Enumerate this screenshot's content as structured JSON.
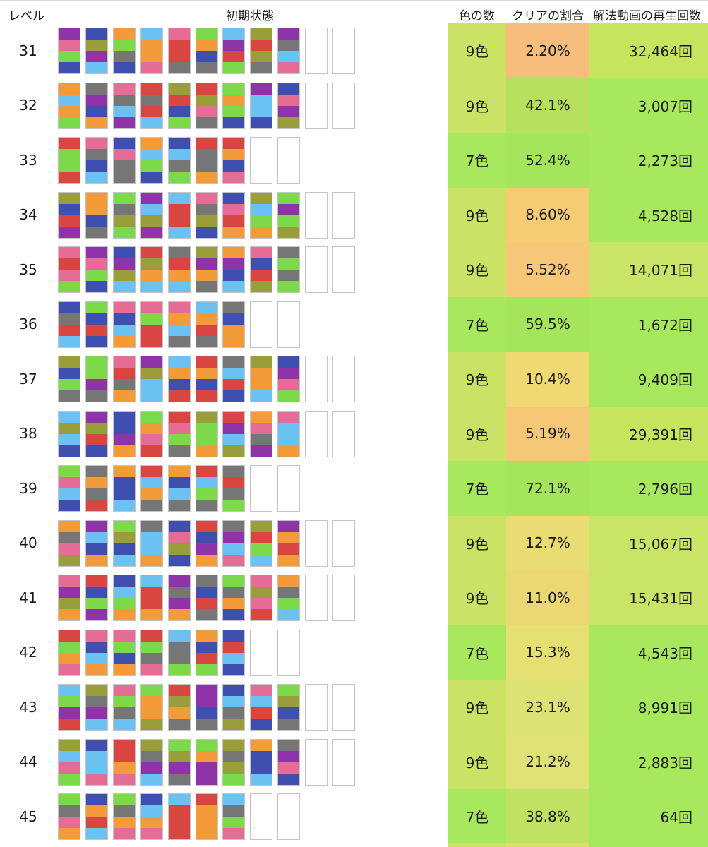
{
  "headers": {
    "level": "レベル",
    "initial_state": "初期状態",
    "colors": "色の数",
    "clear_rate": "クリアの割合",
    "views": "解法動画の再生回数"
  },
  "palette": {
    "P": "#e46c95",
    "B": "#3f4fb0",
    "O": "#f39a39",
    "S": "#6cc1f3",
    "R": "#d94540",
    "G": "#7cd94a",
    "V": "#8f33a8",
    "K": "#767676",
    "Y": "#9a9e3a"
  },
  "rows": [
    {
      "level": "31",
      "colors": "9色",
      "rate": "2.20%",
      "views": "32,464回",
      "bg": [
        "#cce264",
        "#f6bd7c",
        "#c6e45d"
      ],
      "tubes": [
        [
          "V",
          "P",
          "G",
          "B"
        ],
        [
          "B",
          "Y",
          "V",
          "S"
        ],
        [
          "O",
          "G",
          "K",
          "B"
        ],
        [
          "S",
          "O",
          "O",
          "P"
        ],
        [
          "P",
          "R",
          "R",
          "K"
        ],
        [
          "G",
          "O",
          "B",
          "K"
        ],
        [
          "S",
          "V",
          "R",
          "G"
        ],
        [
          "Y",
          "R",
          "Y",
          "K"
        ],
        [
          "V",
          "K",
          "S",
          "P"
        ],
        [],
        []
      ]
    },
    {
      "level": "32",
      "colors": "9色",
      "rate": "42.1%",
      "views": "3,007回",
      "bg": [
        "#cce264",
        "#b6e05e",
        "#a8e85c"
      ],
      "tubes": [
        [
          "O",
          "S",
          "O",
          "G"
        ],
        [
          "K",
          "V",
          "B",
          "O"
        ],
        [
          "P",
          "K",
          "S",
          "V"
        ],
        [
          "R",
          "K",
          "R",
          "S"
        ],
        [
          "Y",
          "R",
          "B",
          "G"
        ],
        [
          "R",
          "Y",
          "P",
          "K"
        ],
        [
          "G",
          "O",
          "G",
          "B"
        ],
        [
          "V",
          "S",
          "S",
          "B"
        ],
        [
          "B",
          "P",
          "V",
          "Y"
        ],
        [],
        []
      ]
    },
    {
      "level": "33",
      "colors": "7色",
      "rate": "52.4%",
      "views": "2,273回",
      "bg": [
        "#a8e85c",
        "#a4e55c",
        "#a8e85c"
      ],
      "tubes": [
        [
          "R",
          "G",
          "G",
          "R"
        ],
        [
          "P",
          "K",
          "B",
          "S"
        ],
        [
          "B",
          "P",
          "K",
          "K"
        ],
        [
          "O",
          "S",
          "G",
          "B"
        ],
        [
          "B",
          "S",
          "K",
          "G"
        ],
        [
          "R",
          "K",
          "K",
          "O"
        ],
        [
          "R",
          "O",
          "B",
          "P"
        ],
        [],
        []
      ]
    },
    {
      "level": "34",
      "colors": "9色",
      "rate": "8.60%",
      "views": "4,528回",
      "bg": [
        "#cce264",
        "#f5cc74",
        "#a8e85c"
      ],
      "tubes": [
        [
          "Y",
          "B",
          "R",
          "V"
        ],
        [
          "O",
          "O",
          "B",
          "K"
        ],
        [
          "G",
          "K",
          "Y",
          "G"
        ],
        [
          "V",
          "S",
          "Y",
          "V"
        ],
        [
          "S",
          "R",
          "R",
          "S"
        ],
        [
          "P",
          "K",
          "Y",
          "B"
        ],
        [
          "B",
          "P",
          "R",
          "O"
        ],
        [
          "Y",
          "S",
          "G",
          "O"
        ],
        [
          "G",
          "V",
          "G",
          "Y"
        ],
        [],
        []
      ]
    },
    {
      "level": "35",
      "colors": "9色",
      "rate": "5.52%",
      "views": "14,071回",
      "bg": [
        "#cce264",
        "#f6c777",
        "#c9e466"
      ],
      "tubes": [
        [
          "P",
          "R",
          "P",
          "G"
        ],
        [
          "V",
          "P",
          "G",
          "B"
        ],
        [
          "B",
          "V",
          "Y",
          "S"
        ],
        [
          "R",
          "Y",
          "O",
          "S"
        ],
        [
          "K",
          "R",
          "O",
          "S"
        ],
        [
          "Y",
          "V",
          "O",
          "K"
        ],
        [
          "O",
          "V",
          "B",
          "S"
        ],
        [
          "P",
          "B",
          "R",
          "Y"
        ],
        [
          "K",
          "G",
          "K",
          "G"
        ],
        [],
        []
      ]
    },
    {
      "level": "36",
      "colors": "7色",
      "rate": "59.5%",
      "views": "1,672回",
      "bg": [
        "#a8e85c",
        "#a4e55c",
        "#a8e85c"
      ],
      "tubes": [
        [
          "B",
          "K",
          "R",
          "S"
        ],
        [
          "G",
          "B",
          "R",
          "B"
        ],
        [
          "P",
          "B",
          "S",
          "O"
        ],
        [
          "P",
          "G",
          "R",
          "R"
        ],
        [
          "P",
          "O",
          "S",
          "K"
        ],
        [
          "S",
          "O",
          "R",
          "K"
        ],
        [
          "K",
          "B",
          "O",
          "O"
        ],
        [],
        []
      ]
    },
    {
      "level": "37",
      "colors": "9色",
      "rate": "10.4%",
      "views": "9,409回",
      "bg": [
        "#cce264",
        "#f0d872",
        "#a8e85c"
      ],
      "tubes": [
        [
          "Y",
          "B",
          "G",
          "K"
        ],
        [
          "G",
          "G",
          "V",
          "K"
        ],
        [
          "P",
          "R",
          "K",
          "O"
        ],
        [
          "V",
          "Y",
          "S",
          "S"
        ],
        [
          "S",
          "O",
          "B",
          "R"
        ],
        [
          "R",
          "O",
          "B",
          "R"
        ],
        [
          "K",
          "S",
          "R",
          "B"
        ],
        [
          "Y",
          "O",
          "O",
          "S"
        ],
        [
          "B",
          "V",
          "P",
          "G"
        ],
        [],
        []
      ]
    },
    {
      "level": "38",
      "colors": "9色",
      "rate": "5.19%",
      "views": "29,391回",
      "bg": [
        "#cce264",
        "#f6c777",
        "#c6e45d"
      ],
      "tubes": [
        [
          "S",
          "Y",
          "S",
          "B"
        ],
        [
          "V",
          "Y",
          "R",
          "B"
        ],
        [
          "B",
          "B",
          "V",
          "O"
        ],
        [
          "G",
          "O",
          "P",
          "R"
        ],
        [
          "R",
          "P",
          "G",
          "K"
        ],
        [
          "Y",
          "G",
          "G",
          "O"
        ],
        [
          "R",
          "V",
          "S",
          "Y"
        ],
        [
          "O",
          "P",
          "K",
          "V"
        ],
        [
          "P",
          "S",
          "S",
          "O"
        ],
        [],
        []
      ]
    },
    {
      "level": "39",
      "colors": "7色",
      "rate": "72.1%",
      "views": "2,796回",
      "bg": [
        "#a8e85c",
        "#a4e55c",
        "#a8e85c"
      ],
      "tubes": [
        [
          "G",
          "P",
          "S",
          "B"
        ],
        [
          "K",
          "O",
          "K",
          "R"
        ],
        [
          "O",
          "B",
          "B",
          "S"
        ],
        [
          "R",
          "S",
          "O",
          "K"
        ],
        [
          "O",
          "B",
          "S",
          "K"
        ],
        [
          "R",
          "S",
          "G",
          "K"
        ],
        [
          "K",
          "R",
          "K",
          "G"
        ],
        [],
        []
      ]
    },
    {
      "level": "40",
      "colors": "9色",
      "rate": "12.7%",
      "views": "15,067回",
      "bg": [
        "#cce264",
        "#e9dc72",
        "#c9e466"
      ],
      "tubes": [
        [
          "O",
          "K",
          "P",
          "Y"
        ],
        [
          "V",
          "S",
          "B",
          "O"
        ],
        [
          "G",
          "Y",
          "B",
          "S"
        ],
        [
          "K",
          "S",
          "S",
          "O"
        ],
        [
          "B",
          "P",
          "Y",
          "B"
        ],
        [
          "R",
          "B",
          "V",
          "O"
        ],
        [
          "K",
          "V",
          "S",
          "P"
        ],
        [
          "Y",
          "R",
          "G",
          "S"
        ],
        [
          "V",
          "O",
          "R",
          "O"
        ],
        [],
        []
      ]
    },
    {
      "level": "41",
      "colors": "9色",
      "rate": "11.0%",
      "views": "15,431回",
      "bg": [
        "#cce264",
        "#ecd872",
        "#c9e466"
      ],
      "tubes": [
        [
          "P",
          "V",
          "Y",
          "O"
        ],
        [
          "R",
          "B",
          "G",
          "V"
        ],
        [
          "B",
          "S",
          "G",
          "O"
        ],
        [
          "S",
          "R",
          "R",
          "O"
        ],
        [
          "V",
          "K",
          "V",
          "O"
        ],
        [
          "K",
          "B",
          "R",
          "K"
        ],
        [
          "G",
          "K",
          "O",
          "B"
        ],
        [
          "P",
          "Y",
          "P",
          "R"
        ],
        [
          "O",
          "K",
          "G",
          "S"
        ],
        [],
        []
      ]
    },
    {
      "level": "42",
      "colors": "7色",
      "rate": "15.3%",
      "views": "4,543回",
      "bg": [
        "#a8e85c",
        "#e6e072",
        "#a8e85c"
      ],
      "tubes": [
        [
          "R",
          "G",
          "O",
          "P"
        ],
        [
          "P",
          "B",
          "S",
          "O"
        ],
        [
          "P",
          "G",
          "B",
          "O"
        ],
        [
          "R",
          "G",
          "K",
          "P"
        ],
        [
          "S",
          "K",
          "K",
          "G"
        ],
        [
          "O",
          "B",
          "R",
          "G"
        ],
        [
          "B",
          "R",
          "S",
          "B"
        ],
        [],
        []
      ]
    },
    {
      "level": "43",
      "colors": "9色",
      "rate": "23.1%",
      "views": "8,991回",
      "bg": [
        "#cce264",
        "#dde274",
        "#a8e85c"
      ],
      "tubes": [
        [
          "S",
          "G",
          "V",
          "R"
        ],
        [
          "Y",
          "K",
          "V",
          "S"
        ],
        [
          "P",
          "G",
          "K",
          "S"
        ],
        [
          "G",
          "O",
          "O",
          "Y"
        ],
        [
          "R",
          "Y",
          "O",
          "K"
        ],
        [
          "V",
          "V",
          "B",
          "K"
        ],
        [
          "B",
          "S",
          "K",
          "Y"
        ],
        [
          "P",
          "S",
          "R",
          "B"
        ],
        [
          "G",
          "Y",
          "B",
          "K"
        ],
        [],
        []
      ]
    },
    {
      "level": "44",
      "colors": "9色",
      "rate": "21.2%",
      "views": "2,883回",
      "bg": [
        "#cce264",
        "#dfe274",
        "#a8e85c"
      ],
      "tubes": [
        [
          "Y",
          "S",
          "P",
          "G"
        ],
        [
          "B",
          "S",
          "S",
          "P"
        ],
        [
          "R",
          "R",
          "O",
          "P"
        ],
        [
          "Y",
          "K",
          "V",
          "S"
        ],
        [
          "G",
          "Y",
          "V",
          "K"
        ],
        [
          "G",
          "O",
          "V",
          "V"
        ],
        [
          "Y",
          "K",
          "Y",
          "G"
        ],
        [
          "O",
          "B",
          "B",
          "S"
        ],
        [
          "K",
          "V",
          "P",
          "B"
        ],
        [],
        []
      ]
    },
    {
      "level": "45",
      "colors": "7色",
      "rate": "38.8%",
      "views": "64回",
      "bg": [
        "#a8e85c",
        "#c0e262",
        "#a8e85c"
      ],
      "tubes": [
        [
          "G",
          "K",
          "P",
          "O"
        ],
        [
          "B",
          "O",
          "R",
          "S"
        ],
        [
          "G",
          "K",
          "O",
          "P"
        ],
        [
          "B",
          "S",
          "O",
          "P"
        ],
        [
          "S",
          "R",
          "R",
          "R"
        ],
        [
          "R",
          "O",
          "O",
          "O"
        ],
        [
          "S",
          "K",
          "G",
          "P"
        ],
        [],
        []
      ]
    }
  ]
}
